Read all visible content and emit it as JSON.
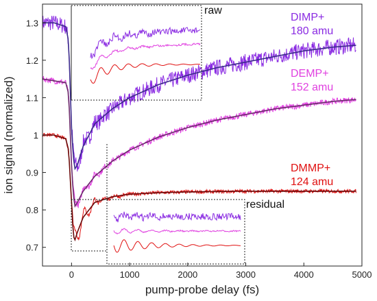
{
  "chart_data": {
    "type": "line",
    "title": "",
    "xlabel": "pump-probe delay (fs)",
    "ylabel": "ion signal (normalized)",
    "xlim": [
      -500,
      5000
    ],
    "ylim": [
      0.65,
      1.35
    ],
    "x_ticks": [
      0,
      1000,
      2000,
      3000,
      4000,
      5000
    ],
    "y_ticks": [
      0.7,
      0.8,
      0.9,
      1,
      1.1,
      1.2,
      1.3
    ],
    "x_tick_labels": [
      "0",
      "1000",
      "2000",
      "3000",
      "4000",
      "5000"
    ],
    "y_tick_labels": [
      "0.7",
      "0.8",
      "0.9",
      "1",
      "1.1",
      "1.2",
      "1.3"
    ],
    "grid": false,
    "series": [
      {
        "name": "DIMP+",
        "mass_label": "180 amu",
        "color": "#8a2be2",
        "fit_color": "#3a2a8a",
        "x": [
          -500,
          -300,
          -100,
          -50,
          0,
          30,
          60,
          100,
          200,
          400,
          700,
          1000,
          1500,
          2000,
          2500,
          3000,
          3500,
          4000,
          4500,
          4900
        ],
        "y": [
          1.3,
          1.3,
          1.29,
          1.25,
          1.02,
          0.94,
          0.91,
          0.92,
          0.97,
          1.03,
          1.07,
          1.1,
          1.135,
          1.16,
          1.18,
          1.195,
          1.21,
          1.225,
          1.235,
          1.24
        ]
      },
      {
        "name": "DEMP+",
        "mass_label": "152 amu",
        "color": "#e040e0",
        "fit_color": "#6a2a6a",
        "x": [
          -500,
          -300,
          -100,
          -50,
          0,
          30,
          60,
          100,
          200,
          400,
          700,
          1000,
          1500,
          2000,
          2500,
          3000,
          3500,
          4000,
          4500,
          4900
        ],
        "y": [
          1.15,
          1.145,
          1.14,
          1.11,
          0.92,
          0.84,
          0.81,
          0.82,
          0.85,
          0.89,
          0.93,
          0.96,
          0.995,
          1.02,
          1.04,
          1.055,
          1.07,
          1.08,
          1.09,
          1.095
        ]
      },
      {
        "name": "DMMP+",
        "mass_label": "124 amu",
        "color": "#e01010",
        "fit_color": "#6a0a0a",
        "x": [
          -500,
          -300,
          -100,
          -50,
          0,
          30,
          60,
          100,
          200,
          400,
          700,
          1000,
          1500,
          2000,
          2500,
          3000,
          3500,
          4000,
          4500,
          4900
        ],
        "y": [
          1.0,
          1.0,
          0.99,
          0.96,
          0.82,
          0.73,
          0.72,
          0.74,
          0.78,
          0.82,
          0.835,
          0.842,
          0.846,
          0.848,
          0.849,
          0.85,
          0.85,
          0.85,
          0.85,
          0.85
        ]
      }
    ],
    "annotations": {
      "raw": "raw",
      "residual": "residual",
      "raw_inset_zoom_range": [
        0,
        600
      ],
      "residual_inset_zoom_range": [
        0,
        600
      ]
    }
  }
}
